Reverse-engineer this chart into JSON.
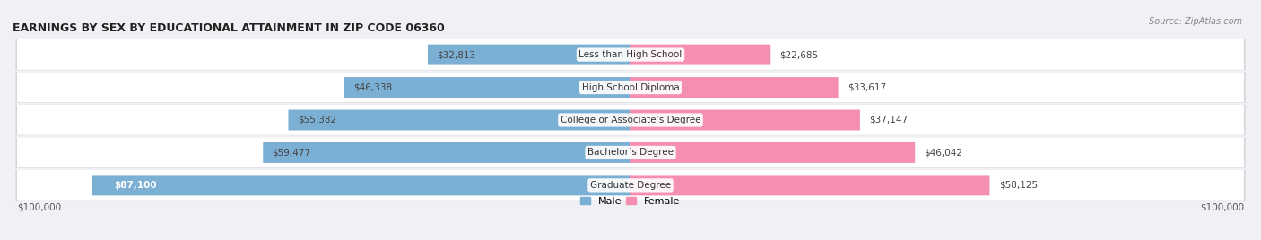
{
  "title": "EARNINGS BY SEX BY EDUCATIONAL ATTAINMENT IN ZIP CODE 06360",
  "source": "Source: ZipAtlas.com",
  "categories": [
    "Less than High School",
    "High School Diploma",
    "College or Associate’s Degree",
    "Bachelor’s Degree",
    "Graduate Degree"
  ],
  "male_values": [
    32813,
    46338,
    55382,
    59477,
    87100
  ],
  "female_values": [
    22685,
    33617,
    37147,
    46042,
    58125
  ],
  "male_color": "#7bafd4",
  "female_color": "#f48fb1",
  "max_value": 100000,
  "fig_bg": "#f0f0f5",
  "row_bg_light": "#f0f0f0",
  "row_bg_dark": "#e4e4e6"
}
